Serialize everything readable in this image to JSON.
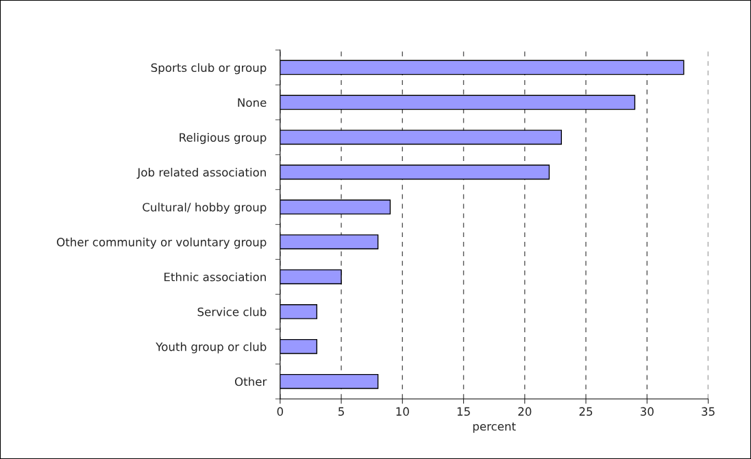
{
  "chart_data": {
    "type": "bar",
    "orientation": "horizontal",
    "xlabel": "percent",
    "categories": [
      "Sports club or group",
      "None",
      "Religious group",
      "Job related association",
      "Cultural/ hobby group",
      "Other community or voluntary group",
      "Ethnic association",
      "Service club",
      "Youth group or club",
      "Other"
    ],
    "series": [
      {
        "color": "#9999ff",
        "values": [
          33,
          29,
          23,
          22,
          9,
          8,
          5,
          3,
          3,
          8
        ]
      }
    ],
    "xlim": [
      0,
      35
    ],
    "xticks": [
      0,
      5,
      10,
      15,
      20,
      25,
      30,
      35
    ],
    "grid": "x",
    "legend": false
  }
}
